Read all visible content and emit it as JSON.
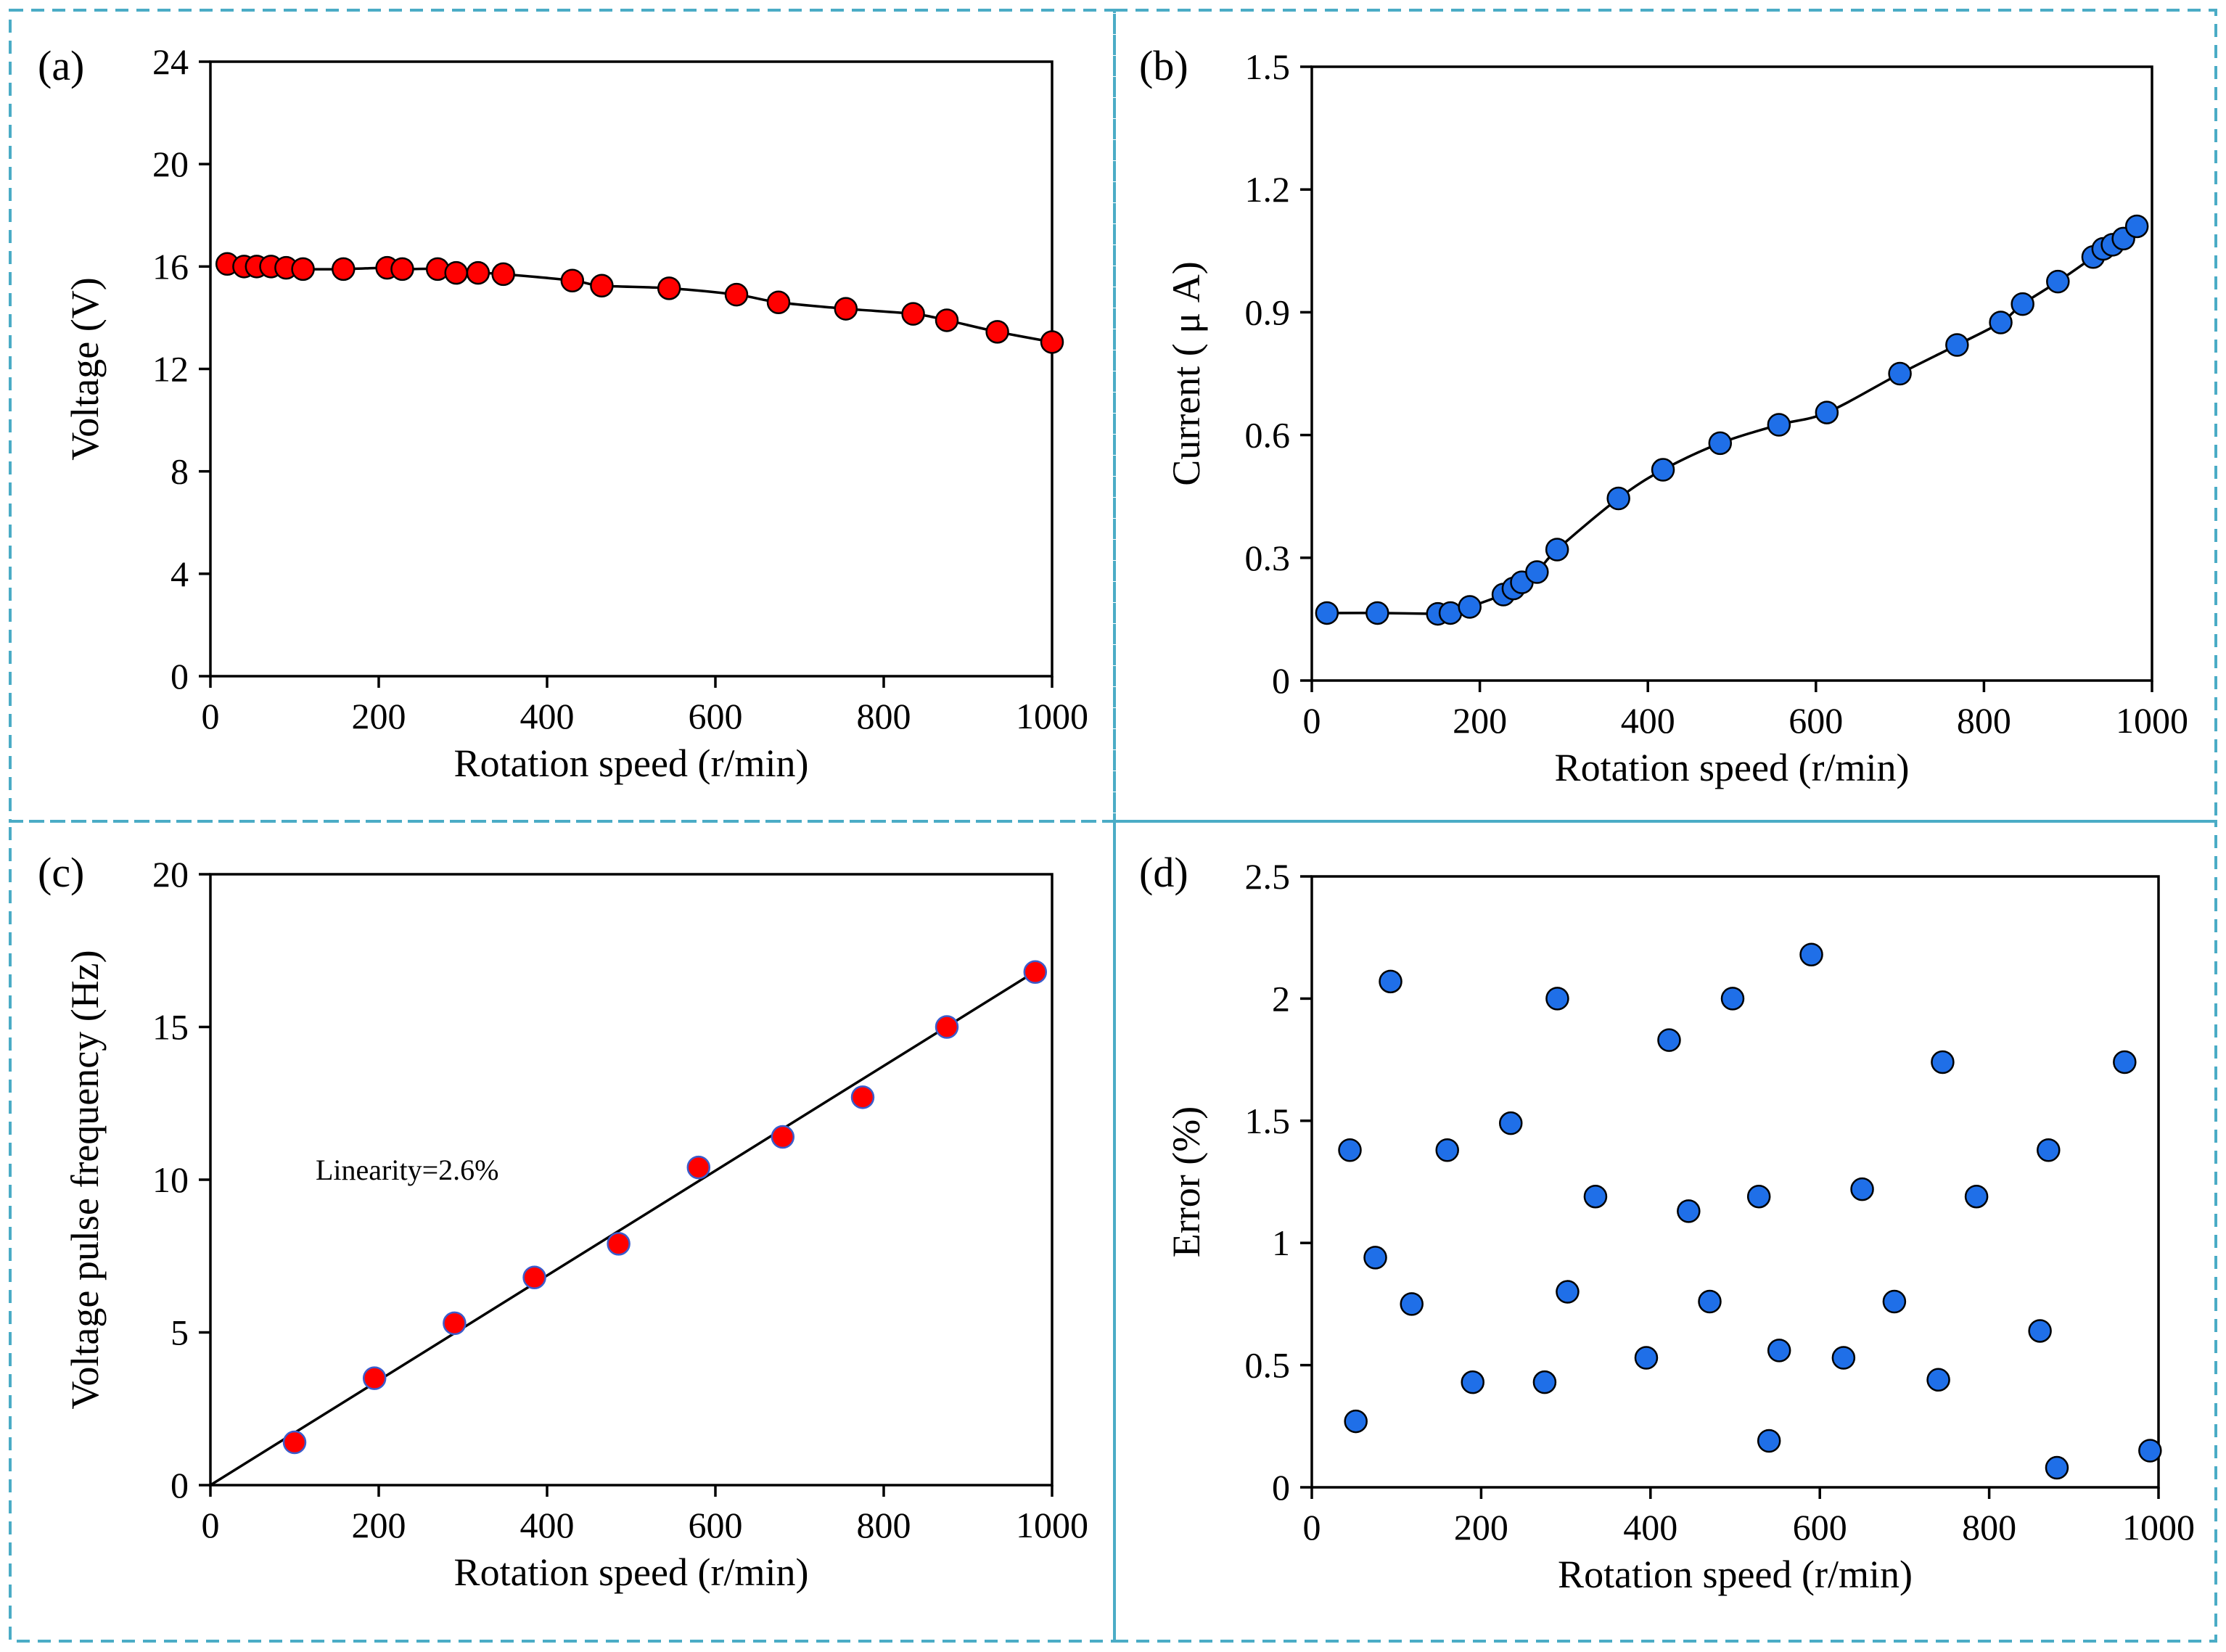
{
  "figure": {
    "border_color": "#4bacc6",
    "marker_red": "#ff0000",
    "marker_blue": "#1f6fe8"
  },
  "chart_data": [
    {
      "id": "a",
      "panel_label": "(a)",
      "type": "line",
      "xlabel": "Rotation speed (r/min)",
      "ylabel": "Voltage  (V)",
      "xlim": [
        0,
        1000
      ],
      "ylim": [
        0,
        24
      ],
      "xticks": [
        0,
        200,
        400,
        600,
        800,
        1000
      ],
      "yticks": [
        0,
        4,
        8,
        12,
        16,
        20,
        24
      ],
      "marker_color": "#ff0000",
      "series": [
        {
          "name": "Voltage",
          "connected": true,
          "x": [
            20,
            40,
            55,
            72,
            90,
            110,
            158,
            210,
            228,
            270,
            292,
            318,
            348,
            430,
            465,
            545,
            625,
            675,
            755,
            835,
            875,
            935,
            1000
          ],
          "y": [
            16.1,
            16.0,
            16.0,
            16.0,
            15.95,
            15.9,
            15.9,
            15.95,
            15.9,
            15.9,
            15.75,
            15.75,
            15.7,
            15.45,
            15.25,
            15.15,
            14.9,
            14.6,
            14.35,
            14.15,
            13.9,
            13.45,
            13.05
          ]
        }
      ]
    },
    {
      "id": "b",
      "panel_label": "(b)",
      "type": "line",
      "xlabel": "Rotation speed (r/min)",
      "ylabel": "Current  ( μ A)",
      "xlim": [
        0,
        1000
      ],
      "ylim": [
        0,
        1.5
      ],
      "xticks": [
        0,
        200,
        400,
        600,
        800,
        1000
      ],
      "yticks": [
        0,
        0.3,
        0.6,
        0.9,
        1.2,
        1.5
      ],
      "marker_color": "#1f6fe8",
      "series": [
        {
          "name": "Current",
          "connected": true,
          "x": [
            18,
            78,
            150,
            165,
            188,
            228,
            240,
            250,
            268,
            292,
            365,
            418,
            486,
            556,
            613,
            700,
            768,
            820,
            846,
            888,
            930,
            942,
            953,
            966,
            982
          ],
          "y": [
            0.165,
            0.165,
            0.163,
            0.165,
            0.18,
            0.21,
            0.225,
            0.24,
            0.265,
            0.32,
            0.445,
            0.515,
            0.58,
            0.625,
            0.655,
            0.75,
            0.82,
            0.875,
            0.92,
            0.975,
            1.035,
            1.055,
            1.065,
            1.08,
            1.11
          ]
        }
      ]
    },
    {
      "id": "c",
      "panel_label": "(c)",
      "type": "scatter",
      "xlabel": "Rotation speed (r/min)",
      "ylabel": "Voltage pulse frequency  (Hz)",
      "xlim": [
        0,
        1000
      ],
      "ylim": [
        0,
        20
      ],
      "xticks": [
        0,
        200,
        400,
        600,
        800,
        1000
      ],
      "yticks": [
        0,
        5,
        10,
        15,
        20
      ],
      "marker_color": "#ff0000",
      "annotation": "Linearity=2.6%",
      "fit_line": {
        "x": [
          0,
          985
        ],
        "y": [
          0,
          16.9
        ]
      },
      "series": [
        {
          "name": "Voltage pulse frequency",
          "connected": false,
          "x": [
            100,
            195,
            290,
            385,
            485,
            580,
            680,
            775,
            875,
            980
          ],
          "y": [
            1.4,
            3.5,
            5.3,
            6.8,
            7.9,
            10.4,
            11.4,
            12.7,
            15.0,
            16.8
          ]
        }
      ]
    },
    {
      "id": "d",
      "panel_label": "(d)",
      "type": "scatter",
      "xlabel": "Rotation speed (r/min)",
      "ylabel": "Error  (%)",
      "xlim": [
        0,
        1000
      ],
      "ylim": [
        0,
        2.5
      ],
      "xticks": [
        0,
        200,
        400,
        600,
        800,
        1000
      ],
      "yticks": [
        0,
        0.5,
        1,
        1.5,
        2,
        2.5
      ],
      "ytick_labels": [
        "0",
        "0.5",
        "1",
        "1.5",
        "2",
        "2.5"
      ],
      "marker_color": "#1f6fe8",
      "series": [
        {
          "name": "Error",
          "connected": false,
          "x": [
            45,
            52,
            75,
            93,
            118,
            160,
            190,
            235,
            275,
            290,
            302,
            335,
            395,
            422,
            445,
            470,
            497,
            528,
            540,
            552,
            590,
            628,
            650,
            688,
            740,
            745,
            785,
            860,
            870,
            880,
            960,
            990
          ],
          "y": [
            1.38,
            0.27,
            0.94,
            2.07,
            0.75,
            1.38,
            0.43,
            1.49,
            0.43,
            2.0,
            0.8,
            1.19,
            0.53,
            1.83,
            1.13,
            0.76,
            2.0,
            1.19,
            0.19,
            0.56,
            2.18,
            0.53,
            1.22,
            0.76,
            0.44,
            1.74,
            1.19,
            0.64,
            1.38,
            0.08,
            1.74,
            0.15
          ]
        }
      ]
    }
  ]
}
